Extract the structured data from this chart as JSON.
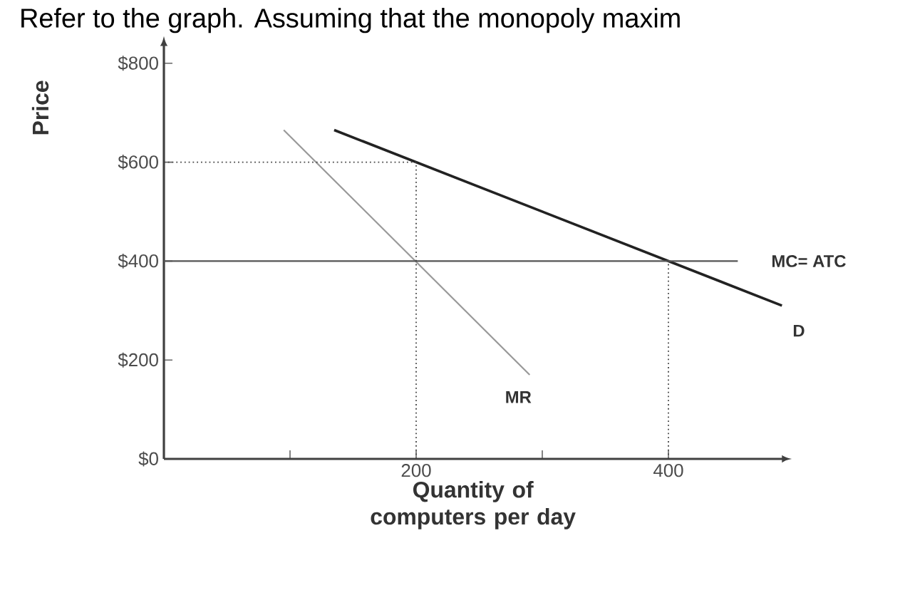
{
  "chart_data": {
    "type": "line",
    "title": "Refer to the graph. Assuming that the monopoly maxim",
    "xlabel": "Quantity of computers per day",
    "ylabel": "Price",
    "xlim": [
      0,
      490
    ],
    "ylim": [
      0,
      835
    ],
    "xticks": [
      {
        "value": 100,
        "label": null
      },
      200,
      {
        "value": 300,
        "label": null
      },
      400
    ],
    "yticks": [
      {
        "value": 0,
        "label": "$0"
      },
      {
        "value": 200,
        "label": "$200"
      },
      {
        "value": 400,
        "label": "$400"
      },
      {
        "value": 600,
        "label": "$600"
      },
      {
        "value": 800,
        "label": "$800"
      }
    ],
    "grid": false,
    "marker": "none",
    "series": [
      {
        "name": "D",
        "color": "#222222",
        "x": [
          135,
          490
        ],
        "values": [
          665,
          310
        ],
        "line_style": "solid"
      },
      {
        "name": "MR",
        "color": "#999999",
        "x": [
          95,
          290
        ],
        "values": [
          665,
          170
        ],
        "line_style": "solid"
      },
      {
        "name": "MC= ATC",
        "color": "#555555",
        "x": [
          0,
          455
        ],
        "values": [
          400,
          400
        ],
        "line_style": "solid"
      },
      {
        "color": "#444444",
        "x": [
          0,
          200
        ],
        "values": [
          600,
          600
        ],
        "line_style": "dotted"
      },
      {
        "color": "#444444",
        "x": [
          200,
          200
        ],
        "values": [
          0,
          600
        ],
        "line_style": "dotted"
      },
      {
        "color": "#444444",
        "x": [
          400,
          400
        ],
        "values": [
          0,
          400
        ],
        "line_style": "dotted"
      }
    ]
  }
}
